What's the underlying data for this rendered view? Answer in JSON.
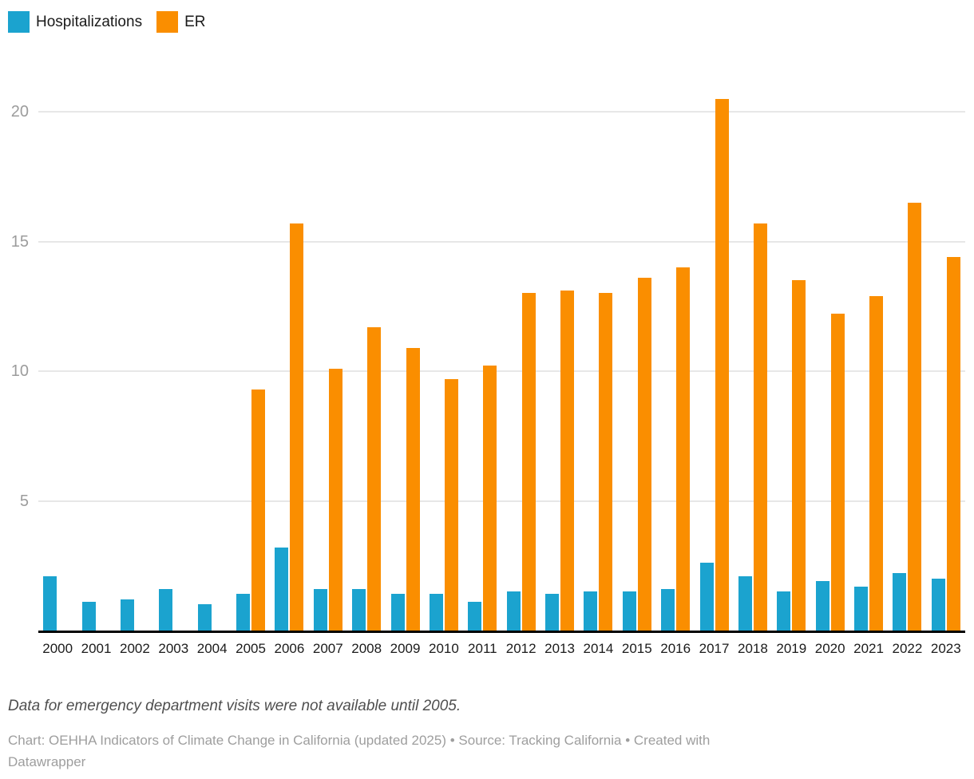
{
  "legend": {
    "items": [
      {
        "label": "Hospitalizations",
        "color": "#1ba3cf"
      },
      {
        "label": "ER",
        "color": "#fa8e00"
      }
    ]
  },
  "chart_data": {
    "type": "bar",
    "title": "",
    "xlabel": "",
    "ylabel": "",
    "categories": [
      "2000",
      "2001",
      "2002",
      "2003",
      "2004",
      "2005",
      "2006",
      "2007",
      "2008",
      "2009",
      "2010",
      "2011",
      "2012",
      "2013",
      "2014",
      "2015",
      "2016",
      "2017",
      "2018",
      "2019",
      "2020",
      "2021",
      "2022",
      "2023"
    ],
    "series": [
      {
        "name": "Hospitalizations",
        "color": "#1ba3cf",
        "values": [
          2.1,
          1.1,
          1.2,
          1.6,
          1.0,
          1.4,
          3.2,
          1.6,
          1.6,
          1.4,
          1.4,
          1.1,
          1.5,
          1.4,
          1.5,
          1.5,
          1.6,
          2.6,
          2.1,
          1.5,
          1.9,
          1.7,
          2.2,
          2.0
        ]
      },
      {
        "name": "ER",
        "color": "#fa8e00",
        "values": [
          null,
          null,
          null,
          null,
          null,
          9.3,
          15.7,
          10.1,
          11.7,
          10.9,
          9.7,
          10.2,
          13.0,
          13.1,
          13.0,
          13.6,
          14.0,
          20.5,
          15.7,
          13.5,
          12.2,
          12.9,
          16.5,
          14.4
        ]
      }
    ],
    "ylim": [
      0,
      21
    ],
    "yticks": [
      5,
      10,
      15,
      20
    ],
    "grid": "horizontal",
    "legend_position": "top-left",
    "gridline_color": "#e7e7e7",
    "axis_color": "#000000"
  },
  "footnote": "Data for emergency department visits were not available until 2005.",
  "credit": {
    "line1": "Chart: OEHHA Indicators of Climate Change in California (updated 2025) • Source: Tracking California • Created with",
    "line2": "Datawrapper"
  }
}
